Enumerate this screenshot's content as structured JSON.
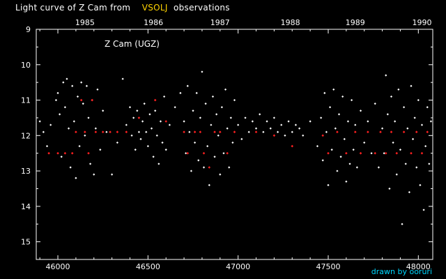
{
  "title": {
    "prefix": "Light curve of Z Cam from",
    "source": "VSOLJ",
    "suffix": "observations"
  },
  "credit": "drawn by ooruri",
  "colors": {
    "background": "#000000",
    "frame": "#ffffff",
    "visual_points": "#ffffff",
    "highlight_points": "#ff2020",
    "title_highlight": "#ffd400",
    "credit": "#00d8ff"
  },
  "chart_data": {
    "type": "scatter",
    "title": "Light curve of Z Cam from VSOLJ observations",
    "annotation": "Z Cam (UGZ)",
    "xlabel": "",
    "ylabel": "",
    "xlim": [
      45880,
      48080
    ],
    "ylim": [
      15.5,
      9
    ],
    "y_inverted": true,
    "x_ticks": [
      46000,
      46500,
      47000,
      47500,
      48000
    ],
    "y_ticks": [
      9,
      10,
      11,
      12,
      13,
      14,
      15
    ],
    "year_labels": [
      {
        "label": "1985",
        "x": 46150
      },
      {
        "label": "1986",
        "x": 46530
      },
      {
        "label": "1987",
        "x": 46900
      },
      {
        "label": "1988",
        "x": 47290
      },
      {
        "label": "1989",
        "x": 47650
      },
      {
        "label": "1990",
        "x": 48020
      }
    ],
    "grid": false,
    "series": [
      {
        "color": "#ffffff",
        "points": [
          [
            45900,
            11.6
          ],
          [
            45920,
            11.9
          ],
          [
            45940,
            12.3
          ],
          [
            45960,
            11.7
          ],
          [
            45990,
            11.0
          ],
          [
            46000,
            10.8
          ],
          [
            46010,
            11.4
          ],
          [
            46020,
            12.6
          ],
          [
            46030,
            10.5
          ],
          [
            46040,
            11.2
          ],
          [
            46050,
            10.4
          ],
          [
            46060,
            11.8
          ],
          [
            46070,
            12.9
          ],
          [
            46080,
            10.6
          ],
          [
            46090,
            11.6
          ],
          [
            46100,
            13.2
          ],
          [
            46110,
            10.9
          ],
          [
            46120,
            12.3
          ],
          [
            46130,
            10.5
          ],
          [
            46140,
            11.1
          ],
          [
            46150,
            12.0
          ],
          [
            46160,
            10.6
          ],
          [
            46170,
            11.5
          ],
          [
            46180,
            12.8
          ],
          [
            46190,
            11.0
          ],
          [
            46200,
            13.1
          ],
          [
            46210,
            11.8
          ],
          [
            46220,
            10.7
          ],
          [
            46235,
            12.4
          ],
          [
            46250,
            11.3
          ],
          [
            46270,
            11.9
          ],
          [
            46300,
            13.1
          ],
          [
            46330,
            12.2
          ],
          [
            46360,
            10.4
          ],
          [
            46380,
            11.7
          ],
          [
            46400,
            11.2
          ],
          [
            46410,
            12.0
          ],
          [
            46420,
            11.5
          ],
          [
            46430,
            12.4
          ],
          [
            46440,
            11.3
          ],
          [
            46450,
            11.9
          ],
          [
            46460,
            12.1
          ],
          [
            46470,
            11.6
          ],
          [
            46480,
            11.1
          ],
          [
            46490,
            11.9
          ],
          [
            46500,
            12.3
          ],
          [
            46510,
            11.4
          ],
          [
            46520,
            11.8
          ],
          [
            46530,
            12.6
          ],
          [
            46540,
            11.3
          ],
          [
            46550,
            12.0
          ],
          [
            46560,
            12.8
          ],
          [
            46570,
            11.6
          ],
          [
            46580,
            12.2
          ],
          [
            46590,
            10.9
          ],
          [
            46600,
            12.4
          ],
          [
            46620,
            11.7
          ],
          [
            46650,
            11.2
          ],
          [
            46680,
            10.8
          ],
          [
            46700,
            11.6
          ],
          [
            46710,
            12.5
          ],
          [
            46720,
            10.6
          ],
          [
            46730,
            11.9
          ],
          [
            46740,
            13.0
          ],
          [
            46750,
            11.3
          ],
          [
            46760,
            12.2
          ],
          [
            46770,
            10.8
          ],
          [
            46780,
            12.7
          ],
          [
            46790,
            11.5
          ],
          [
            46800,
            10.2
          ],
          [
            46810,
            12.9
          ],
          [
            46820,
            11.1
          ],
          [
            46830,
            12.3
          ],
          [
            46840,
            13.4
          ],
          [
            46850,
            11.7
          ],
          [
            46860,
            10.9
          ],
          [
            46870,
            12.6
          ],
          [
            46880,
            11.4
          ],
          [
            46890,
            12.0
          ],
          [
            46900,
            13.1
          ],
          [
            46910,
            11.2
          ],
          [
            46920,
            12.5
          ],
          [
            46930,
            10.7
          ],
          [
            46940,
            11.8
          ],
          [
            46950,
            12.9
          ],
          [
            46960,
            11.5
          ],
          [
            46970,
            12.2
          ],
          [
            46980,
            11.0
          ],
          [
            47000,
            11.7
          ],
          [
            47020,
            12.1
          ],
          [
            47040,
            11.5
          ],
          [
            47060,
            11.9
          ],
          [
            47080,
            11.6
          ],
          [
            47100,
            11.8
          ],
          [
            47120,
            11.4
          ],
          [
            47140,
            11.9
          ],
          [
            47160,
            11.6
          ],
          [
            47180,
            11.8
          ],
          [
            47200,
            11.5
          ],
          [
            47220,
            11.9
          ],
          [
            47240,
            11.7
          ],
          [
            47260,
            12.0
          ],
          [
            47280,
            11.6
          ],
          [
            47300,
            11.9
          ],
          [
            47320,
            11.7
          ],
          [
            47340,
            11.8
          ],
          [
            47360,
            12.0
          ],
          [
            47400,
            11.6
          ],
          [
            47440,
            12.3
          ],
          [
            47460,
            11.5
          ],
          [
            47470,
            12.7
          ],
          [
            47480,
            10.8
          ],
          [
            47490,
            11.9
          ],
          [
            47500,
            13.4
          ],
          [
            47510,
            11.2
          ],
          [
            47520,
            12.4
          ],
          [
            47530,
            10.7
          ],
          [
            47540,
            11.8
          ],
          [
            47550,
            13.0
          ],
          [
            47560,
            11.4
          ],
          [
            47570,
            12.6
          ],
          [
            47580,
            10.9
          ],
          [
            47590,
            12.1
          ],
          [
            47600,
            13.3
          ],
          [
            47610,
            11.6
          ],
          [
            47620,
            12.8
          ],
          [
            47630,
            11.0
          ],
          [
            47640,
            12.4
          ],
          [
            47650,
            11.7
          ],
          [
            47660,
            12.9
          ],
          [
            47680,
            11.3
          ],
          [
            47700,
            12.2
          ],
          [
            47720,
            11.6
          ],
          [
            47740,
            12.5
          ],
          [
            47760,
            11.1
          ],
          [
            47780,
            12.9
          ],
          [
            47800,
            11.8
          ],
          [
            47810,
            12.5
          ],
          [
            47820,
            10.3
          ],
          [
            47830,
            11.4
          ],
          [
            47840,
            13.5
          ],
          [
            47850,
            10.9
          ],
          [
            47860,
            12.2
          ],
          [
            47870,
            11.6
          ],
          [
            47880,
            13.1
          ],
          [
            47890,
            10.7
          ],
          [
            47900,
            12.4
          ],
          [
            47910,
            14.5
          ],
          [
            47920,
            11.2
          ],
          [
            47930,
            12.8
          ],
          [
            47940,
            11.8
          ],
          [
            47950,
            13.6
          ],
          [
            47960,
            10.6
          ],
          [
            47970,
            12.1
          ],
          [
            47980,
            11.5
          ],
          [
            47990,
            12.9
          ],
          [
            48000,
            11.0
          ],
          [
            48010,
            13.4
          ],
          [
            48020,
            11.7
          ],
          [
            48030,
            14.1
          ],
          [
            48040,
            12.3
          ],
          [
            48050,
            11.2
          ],
          [
            48060,
            12.8
          ],
          [
            48070,
            11.6
          ]
        ]
      },
      {
        "color": "#ff2020",
        "points": [
          [
            45950,
            12.5
          ],
          [
            46000,
            12.5
          ],
          [
            46040,
            12.5
          ],
          [
            46080,
            12.5
          ],
          [
            46100,
            11.9
          ],
          [
            46130,
            11.0
          ],
          [
            46150,
            11.9
          ],
          [
            46170,
            12.5
          ],
          [
            46190,
            11.0
          ],
          [
            46210,
            11.9
          ],
          [
            46250,
            11.9
          ],
          [
            46290,
            11.9
          ],
          [
            46330,
            11.9
          ],
          [
            46380,
            11.9
          ],
          [
            46450,
            11.5
          ],
          [
            46540,
            11.0
          ],
          [
            46600,
            11.6
          ],
          [
            46700,
            11.9
          ],
          [
            46720,
            12.5
          ],
          [
            46760,
            11.9
          ],
          [
            46790,
            11.9
          ],
          [
            46810,
            12.5
          ],
          [
            46840,
            12.9
          ],
          [
            46870,
            11.9
          ],
          [
            46900,
            11.9
          ],
          [
            46940,
            12.5
          ],
          [
            46980,
            11.9
          ],
          [
            47100,
            11.9
          ],
          [
            47200,
            12.0
          ],
          [
            47300,
            12.3
          ],
          [
            47470,
            12.0
          ],
          [
            47500,
            12.5
          ],
          [
            47550,
            11.9
          ],
          [
            47600,
            12.5
          ],
          [
            47650,
            11.9
          ],
          [
            47680,
            12.5
          ],
          [
            47720,
            11.9
          ],
          [
            47760,
            12.5
          ],
          [
            47790,
            11.9
          ],
          [
            47820,
            12.5
          ],
          [
            47850,
            11.9
          ],
          [
            47880,
            12.5
          ],
          [
            47920,
            11.9
          ],
          [
            47960,
            12.5
          ],
          [
            47990,
            11.9
          ],
          [
            48020,
            12.5
          ],
          [
            48050,
            11.9
          ]
        ]
      }
    ]
  }
}
